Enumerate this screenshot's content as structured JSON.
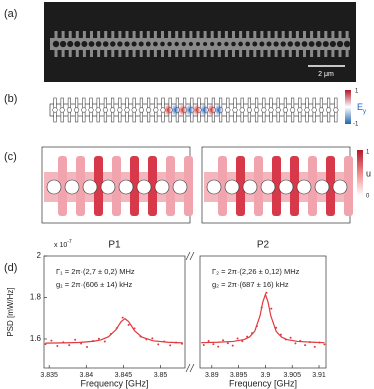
{
  "panel_labels": [
    "(a)",
    "(b)",
    "(c)",
    "(d)"
  ],
  "scale_bar": "2 μm",
  "colorbar_b": {
    "top": "1",
    "label": "E",
    "label_sub": "y",
    "bottom": "-1"
  },
  "colorbar_c": {
    "top": "1",
    "label": "u",
    "bottom": "0"
  },
  "chart_data": [
    {
      "type": "scatter",
      "title": "P1",
      "x_label": "Frequency [GHz]",
      "y_label": "PSD [mW/Hz]",
      "y_scale_label": "x 10",
      "y_scale_exponent": "-7",
      "annotations": [
        "Γ₁ = 2π·(2,7 ± 0,2) MHz",
        "g₁ = 2π·(606 ± 14) kHz"
      ],
      "xlim": [
        3.8343,
        3.8533
      ],
      "xticks": [
        3.835,
        3.84,
        3.845,
        3.85
      ],
      "ylim": [
        1.46,
        2
      ],
      "yticks": [
        1.6,
        1.8,
        2
      ],
      "series": [
        {
          "style": "markers",
          "color": "#e0393e",
          "x": [
            3.8345,
            3.8353,
            3.8361,
            3.8369,
            3.8377,
            3.8385,
            3.8393,
            3.8401,
            3.8409,
            3.8417,
            3.8425,
            3.8433,
            3.8441,
            3.8449,
            3.8457,
            3.8465,
            3.8473,
            3.8481,
            3.8489,
            3.8497,
            3.8505,
            3.8513,
            3.8521,
            3.8529
          ],
          "values": [
            1.575,
            1.592,
            1.566,
            1.584,
            1.57,
            1.596,
            1.578,
            1.561,
            1.59,
            1.601,
            1.588,
            1.624,
            1.652,
            1.703,
            1.668,
            1.651,
            1.612,
            1.598,
            1.603,
            1.574,
            1.588,
            1.569,
            1.583,
            1.577
          ]
        },
        {
          "style": "line",
          "color": "#e0393e",
          "x": [
            3.8345,
            3.837,
            3.839,
            3.841,
            3.842,
            3.843,
            3.844,
            3.8447,
            3.8452,
            3.8457,
            3.8465,
            3.8475,
            3.849,
            3.851,
            3.853
          ],
          "values": [
            1.58,
            1.581,
            1.583,
            1.589,
            1.596,
            1.611,
            1.645,
            1.684,
            1.698,
            1.684,
            1.64,
            1.609,
            1.591,
            1.584,
            1.581
          ]
        }
      ]
    },
    {
      "type": "scatter",
      "title": "P2",
      "x_label": "Frequency [GHz]",
      "annotations": [
        "Γ₂ = 2π·(2,26 ± 0,12) MHz",
        "g₂ = 2π·(687 ± 16) kHz"
      ],
      "xlim": [
        3.8878,
        3.9113
      ],
      "xticks": [
        3.89,
        3.895,
        3.9,
        3.905,
        3.91
      ],
      "ylim": [
        1.46,
        2
      ],
      "series": [
        {
          "style": "markers",
          "color": "#e0393e",
          "x": [
            3.8885,
            3.8894,
            3.8903,
            3.8912,
            3.8921,
            3.893,
            3.8939,
            3.8948,
            3.8957,
            3.8966,
            3.8975,
            3.8984,
            3.8993,
            3.9002,
            3.9011,
            3.902,
            3.9029,
            3.9038,
            3.9047,
            3.9056,
            3.9065,
            3.9074,
            3.9083,
            3.9092,
            3.9101,
            3.911
          ],
          "values": [
            1.571,
            1.59,
            1.575,
            1.563,
            1.594,
            1.58,
            1.568,
            1.602,
            1.589,
            1.611,
            1.628,
            1.662,
            1.751,
            1.823,
            1.746,
            1.654,
            1.621,
            1.598,
            1.606,
            1.579,
            1.591,
            1.57,
            1.585,
            1.562,
            1.583,
            1.574
          ]
        },
        {
          "style": "line",
          "color": "#e0393e",
          "x": [
            3.888,
            3.891,
            3.894,
            3.896,
            3.897,
            3.898,
            3.899,
            3.8995,
            3.9,
            3.9005,
            3.901,
            3.902,
            3.903,
            3.904,
            3.906,
            3.909,
            3.911
          ],
          "values": [
            1.582,
            1.584,
            1.588,
            1.597,
            1.609,
            1.637,
            1.712,
            1.777,
            1.815,
            1.777,
            1.712,
            1.637,
            1.609,
            1.597,
            1.588,
            1.584,
            1.582
          ]
        }
      ]
    }
  ]
}
